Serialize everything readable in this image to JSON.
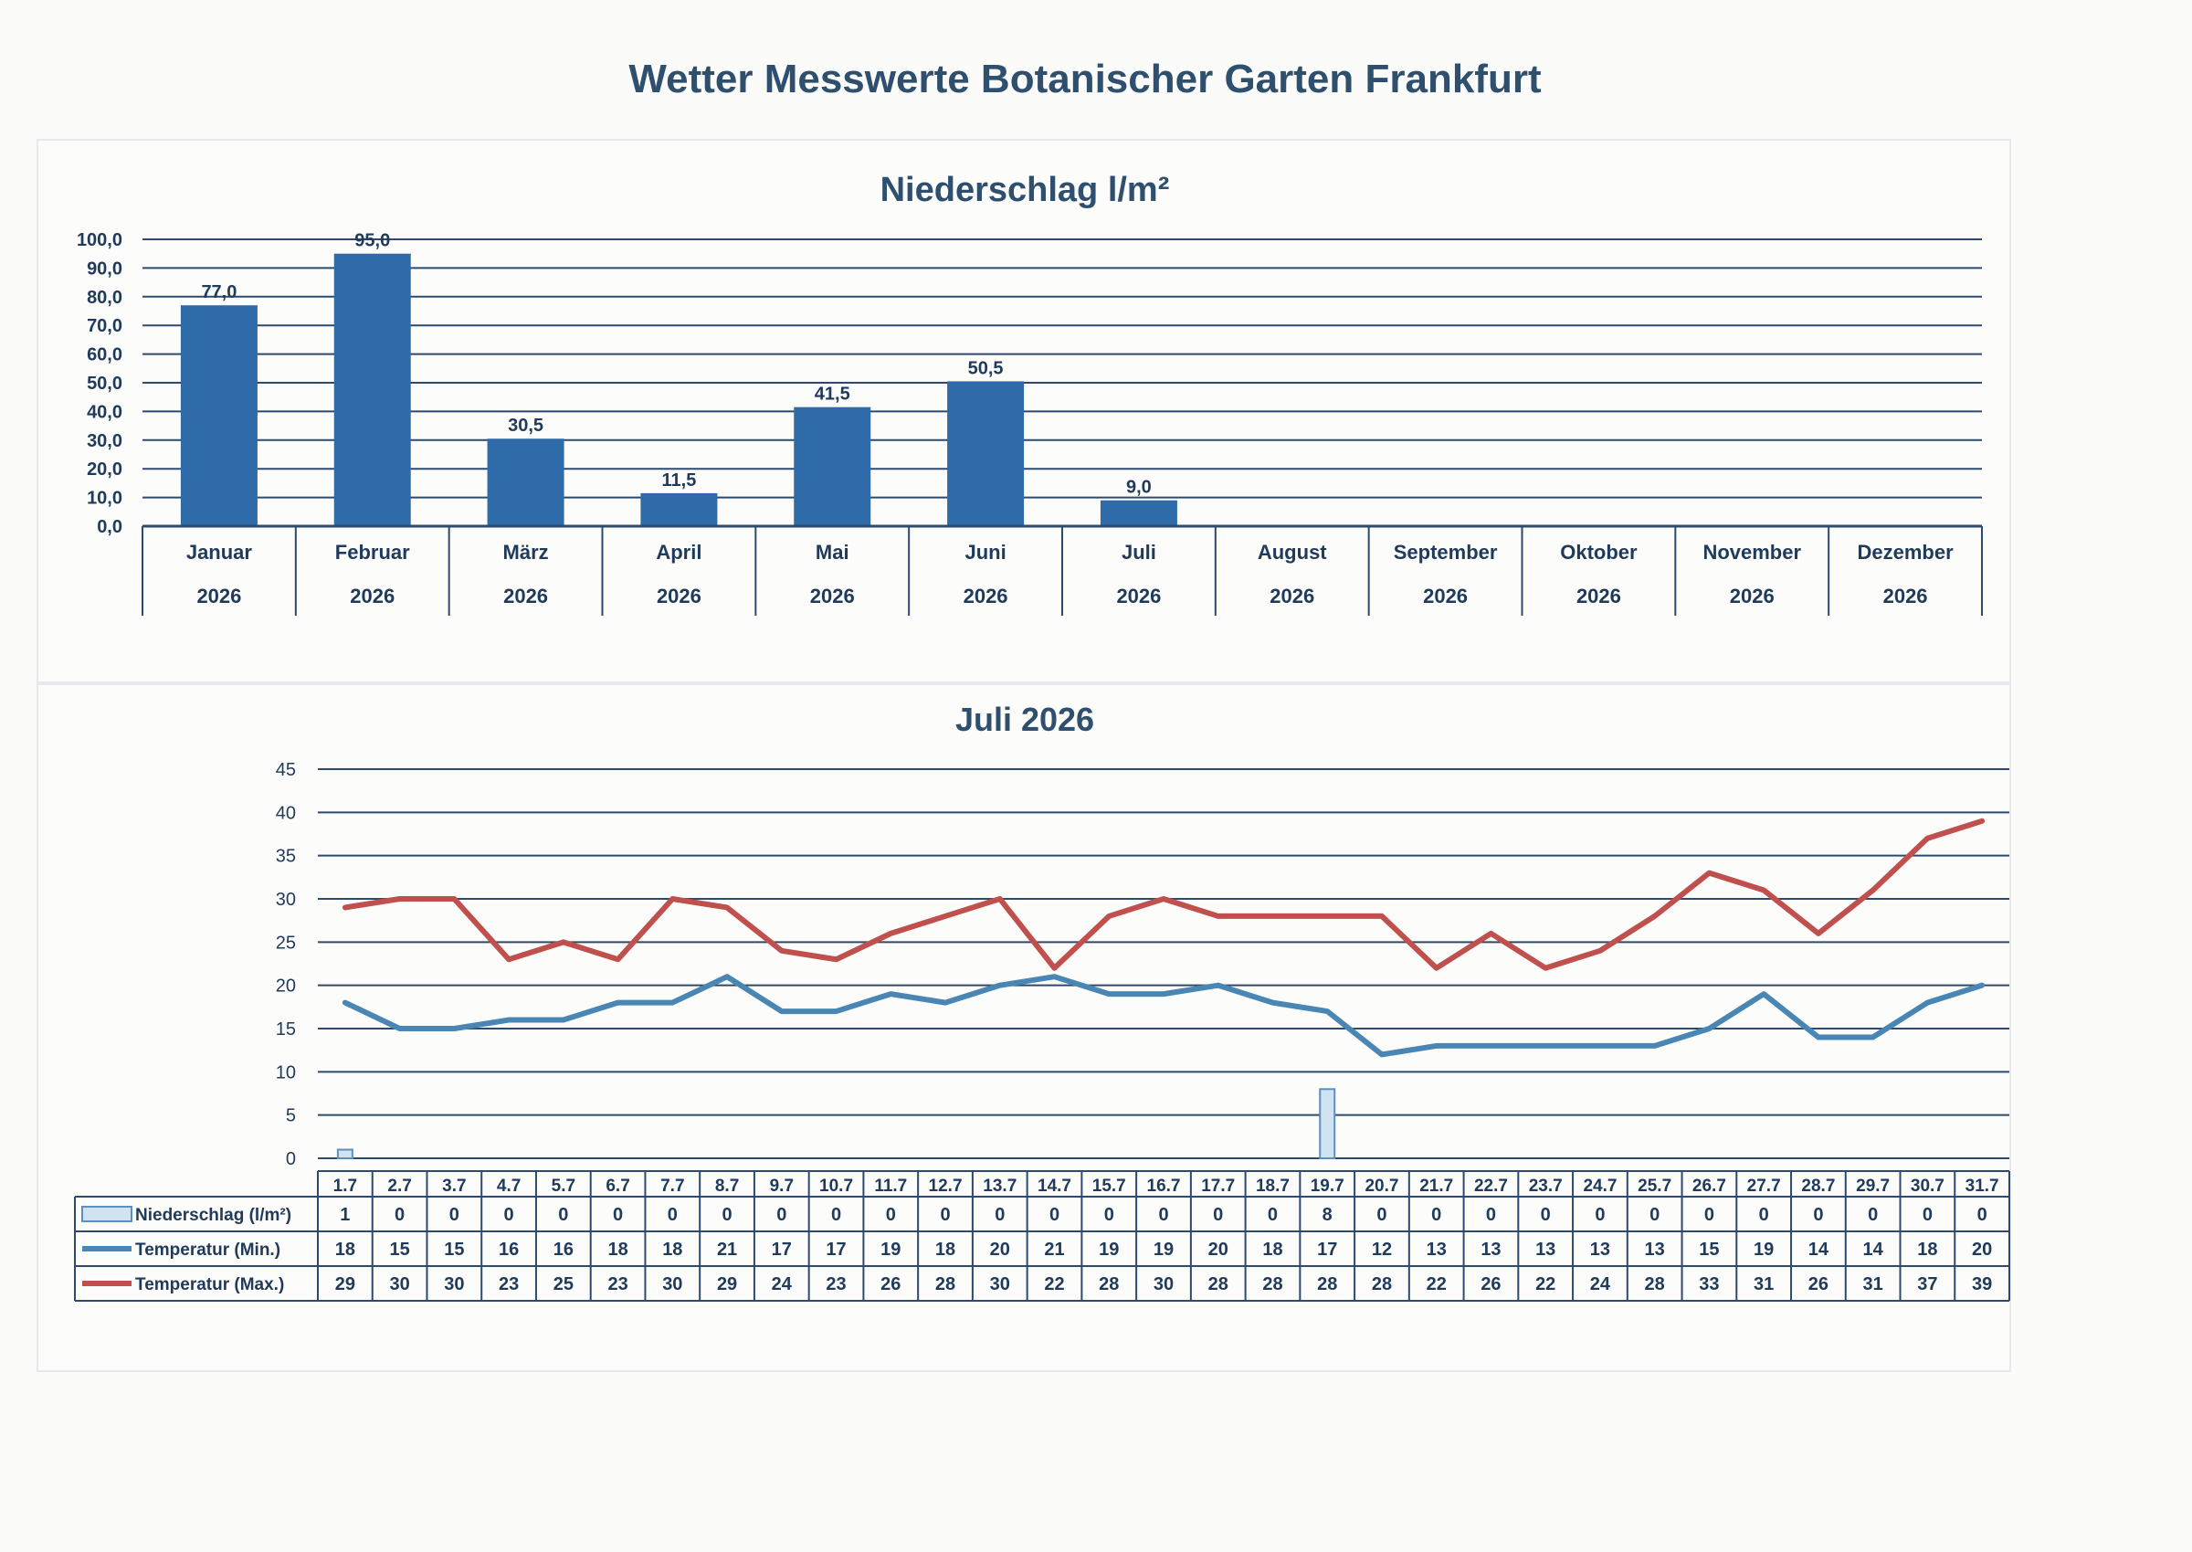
{
  "page": {
    "title": "Wetter Messwerte Botanischer Garten Frankfurt"
  },
  "colors": {
    "bar": "#2f6ba8",
    "grid": "#2d4a6e",
    "min": "#4a86b4",
    "max": "#c0504d",
    "rain_light": "#cfe3f3"
  },
  "chart_data": [
    {
      "type": "bar",
      "title": "Niederschlag l/m²",
      "categories": [
        "Januar",
        "Februar",
        "März",
        "April",
        "Mai",
        "Juni",
        "Juli",
        "August",
        "September",
        "Oktober",
        "November",
        "Dezember"
      ],
      "year": "2026",
      "values": [
        77.0,
        95.0,
        30.5,
        11.5,
        41.5,
        50.5,
        9.0,
        null,
        null,
        null,
        null,
        null
      ],
      "value_labels": [
        "77,0",
        "95,0",
        "30,5",
        "11,5",
        "41,5",
        "50,5",
        "9,0",
        "",
        "",
        "",
        "",
        ""
      ],
      "ylim": [
        0,
        100
      ],
      "yticks": [
        "0,0",
        "10,0",
        "20,0",
        "30,0",
        "40,0",
        "50,0",
        "60,0",
        "70,0",
        "80,0",
        "90,0",
        "100,0"
      ],
      "grid": true
    },
    {
      "type": "line",
      "title": "Juli 2026",
      "x": [
        "1.7",
        "2.7",
        "3.7",
        "4.7",
        "5.7",
        "6.7",
        "7.7",
        "8.7",
        "9.7",
        "10.7",
        "11.7",
        "12.7",
        "13.7",
        "14.7",
        "15.7",
        "16.7",
        "17.7",
        "18.7",
        "19.7",
        "20.7",
        "21.7",
        "22.7",
        "23.7",
        "24.7",
        "25.7",
        "26.7",
        "27.7",
        "28.7",
        "29.7",
        "30.7",
        "31.7"
      ],
      "ylim": [
        0,
        45
      ],
      "yticks": [
        "0",
        "5",
        "10",
        "15",
        "20",
        "25",
        "30",
        "35",
        "40",
        "45"
      ],
      "grid": true,
      "legend": "data table below chart",
      "series": [
        {
          "name": "Niederschlag (l/m²)",
          "kind": "bar",
          "values": [
            1,
            0,
            0,
            0,
            0,
            0,
            0,
            0,
            0,
            0,
            0,
            0,
            0,
            0,
            0,
            0,
            0,
            0,
            8,
            0,
            0,
            0,
            0,
            0,
            0,
            0,
            0,
            0,
            0,
            0,
            0
          ]
        },
        {
          "name": "Temperatur (Min.)",
          "kind": "line",
          "values": [
            18,
            15,
            15,
            16,
            16,
            18,
            18,
            21,
            17,
            17,
            19,
            18,
            20,
            21,
            19,
            19,
            20,
            18,
            17,
            12,
            13,
            13,
            13,
            13,
            13,
            15,
            19,
            14,
            14,
            18,
            20
          ]
        },
        {
          "name": "Temperatur (Max.)",
          "kind": "line",
          "values": [
            29,
            30,
            30,
            23,
            25,
            23,
            30,
            29,
            24,
            23,
            26,
            28,
            30,
            22,
            28,
            30,
            28,
            28,
            28,
            28,
            22,
            26,
            22,
            24,
            28,
            33,
            31,
            26,
            31,
            37,
            39
          ]
        }
      ]
    }
  ]
}
